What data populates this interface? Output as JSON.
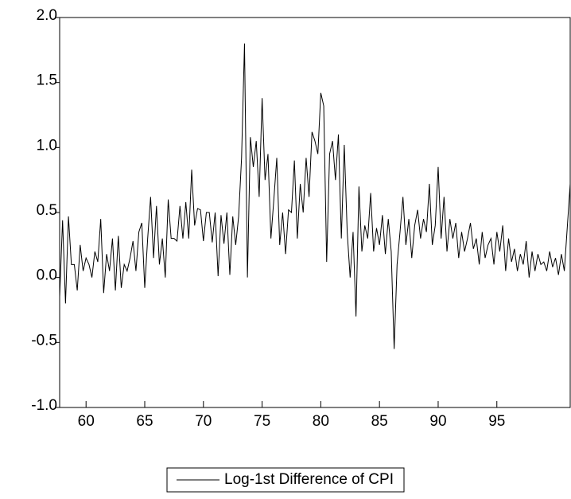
{
  "chart_data": {
    "type": "line",
    "x": [
      57.75,
      58,
      58.25,
      58.5,
      58.75,
      59,
      59.25,
      59.5,
      59.75,
      60,
      60.25,
      60.5,
      60.75,
      61,
      61.25,
      61.5,
      61.75,
      62,
      62.25,
      62.5,
      62.75,
      63,
      63.25,
      63.5,
      63.75,
      64,
      64.25,
      64.5,
      64.75,
      65,
      65.25,
      65.5,
      65.75,
      66,
      66.25,
      66.5,
      66.75,
      67,
      67.25,
      67.5,
      67.75,
      68,
      68.25,
      68.5,
      68.75,
      69,
      69.25,
      69.5,
      69.75,
      70,
      70.25,
      70.5,
      70.75,
      71,
      71.25,
      71.5,
      71.75,
      72,
      72.25,
      72.5,
      72.75,
      73,
      73.25,
      73.5,
      73.75,
      74,
      74.25,
      74.5,
      74.75,
      75,
      75.25,
      75.5,
      75.75,
      76,
      76.25,
      76.5,
      76.75,
      77,
      77.25,
      77.5,
      77.75,
      78,
      78.25,
      78.5,
      78.75,
      79,
      79.25,
      79.5,
      79.75,
      80,
      80.25,
      80.5,
      80.75,
      81,
      81.25,
      81.5,
      81.75,
      82,
      82.25,
      82.5,
      82.75,
      83,
      83.25,
      83.5,
      83.75,
      84,
      84.25,
      84.5,
      84.75,
      85,
      85.25,
      85.5,
      85.75,
      86,
      86.25,
      86.5,
      86.75,
      87,
      87.25,
      87.5,
      87.75,
      88,
      88.25,
      88.5,
      88.75,
      89,
      89.25,
      89.5,
      89.75,
      90,
      90.25,
      90.5,
      90.75,
      91,
      91.25,
      91.5,
      91.75,
      92,
      92.25,
      92.5,
      92.75,
      93,
      93.25,
      93.5,
      93.75,
      94,
      94.25,
      94.5,
      94.75,
      95,
      95.25,
      95.5,
      95.75,
      96,
      96.25,
      96.5,
      96.75,
      97,
      97.25,
      97.5,
      97.75,
      98,
      98.25,
      98.5,
      98.75,
      99,
      99.25,
      99.5,
      99.75,
      100,
      100.25,
      100.5,
      100.75,
      101.25
    ],
    "series": [
      {
        "name": "Log-1st Difference of CPI",
        "color": "#000000",
        "values": [
          -0.15,
          0.44,
          -0.2,
          0.47,
          0.1,
          0.1,
          -0.1,
          0.25,
          0.05,
          0.15,
          0.1,
          0.0,
          0.2,
          0.12,
          0.45,
          -0.12,
          0.18,
          0.05,
          0.3,
          -0.1,
          0.32,
          -0.08,
          0.1,
          0.05,
          0.15,
          0.28,
          0.05,
          0.35,
          0.42,
          -0.08,
          0.3,
          0.62,
          0.15,
          0.55,
          0.1,
          0.3,
          0.0,
          0.6,
          0.3,
          0.3,
          0.28,
          0.55,
          0.3,
          0.58,
          0.3,
          0.83,
          0.4,
          0.53,
          0.52,
          0.28,
          0.5,
          0.5,
          0.27,
          0.5,
          0.01,
          0.48,
          0.26,
          0.5,
          0.02,
          0.47,
          0.25,
          0.47,
          0.92,
          1.8,
          0.0,
          1.08,
          0.85,
          1.05,
          0.62,
          1.38,
          0.75,
          0.95,
          0.3,
          0.6,
          0.92,
          0.25,
          0.5,
          0.18,
          0.52,
          0.5,
          0.9,
          0.3,
          0.72,
          0.5,
          0.92,
          0.62,
          1.12,
          1.05,
          0.95,
          1.42,
          1.32,
          0.12,
          0.95,
          1.05,
          0.75,
          1.1,
          0.3,
          1.02,
          0.35,
          0.0,
          0.35,
          -0.3,
          0.7,
          0.2,
          0.4,
          0.3,
          0.65,
          0.2,
          0.38,
          0.25,
          0.48,
          0.18,
          0.45,
          0.2,
          -0.55,
          0.1,
          0.35,
          0.62,
          0.25,
          0.45,
          0.15,
          0.4,
          0.52,
          0.3,
          0.45,
          0.35,
          0.72,
          0.25,
          0.4,
          0.85,
          0.3,
          0.62,
          0.2,
          0.45,
          0.3,
          0.42,
          0.15,
          0.35,
          0.2,
          0.3,
          0.42,
          0.22,
          0.3,
          0.1,
          0.35,
          0.15,
          0.25,
          0.3,
          0.1,
          0.35,
          0.2,
          0.4,
          0.05,
          0.3,
          0.12,
          0.22,
          0.05,
          0.18,
          0.1,
          0.28,
          0.0,
          0.2,
          0.05,
          0.18,
          0.1,
          0.12,
          0.05,
          0.2,
          0.08,
          0.15,
          0.02,
          0.18,
          0.05,
          0.72
        ]
      }
    ],
    "xlim": [
      57.75,
      101.25
    ],
    "xticks": [
      60,
      65,
      70,
      75,
      80,
      85,
      90,
      95
    ],
    "ylim": [
      -1,
      2
    ],
    "yticks": [
      {
        "value": -1,
        "label": "-1.0"
      },
      -0.5,
      {
        "value": 0,
        "label": "0.0"
      },
      0.5,
      {
        "value": 1,
        "label": "1.0"
      },
      1.5,
      {
        "value": 2,
        "label": "2.0"
      }
    ],
    "grid": false,
    "legend": "bottom"
  }
}
